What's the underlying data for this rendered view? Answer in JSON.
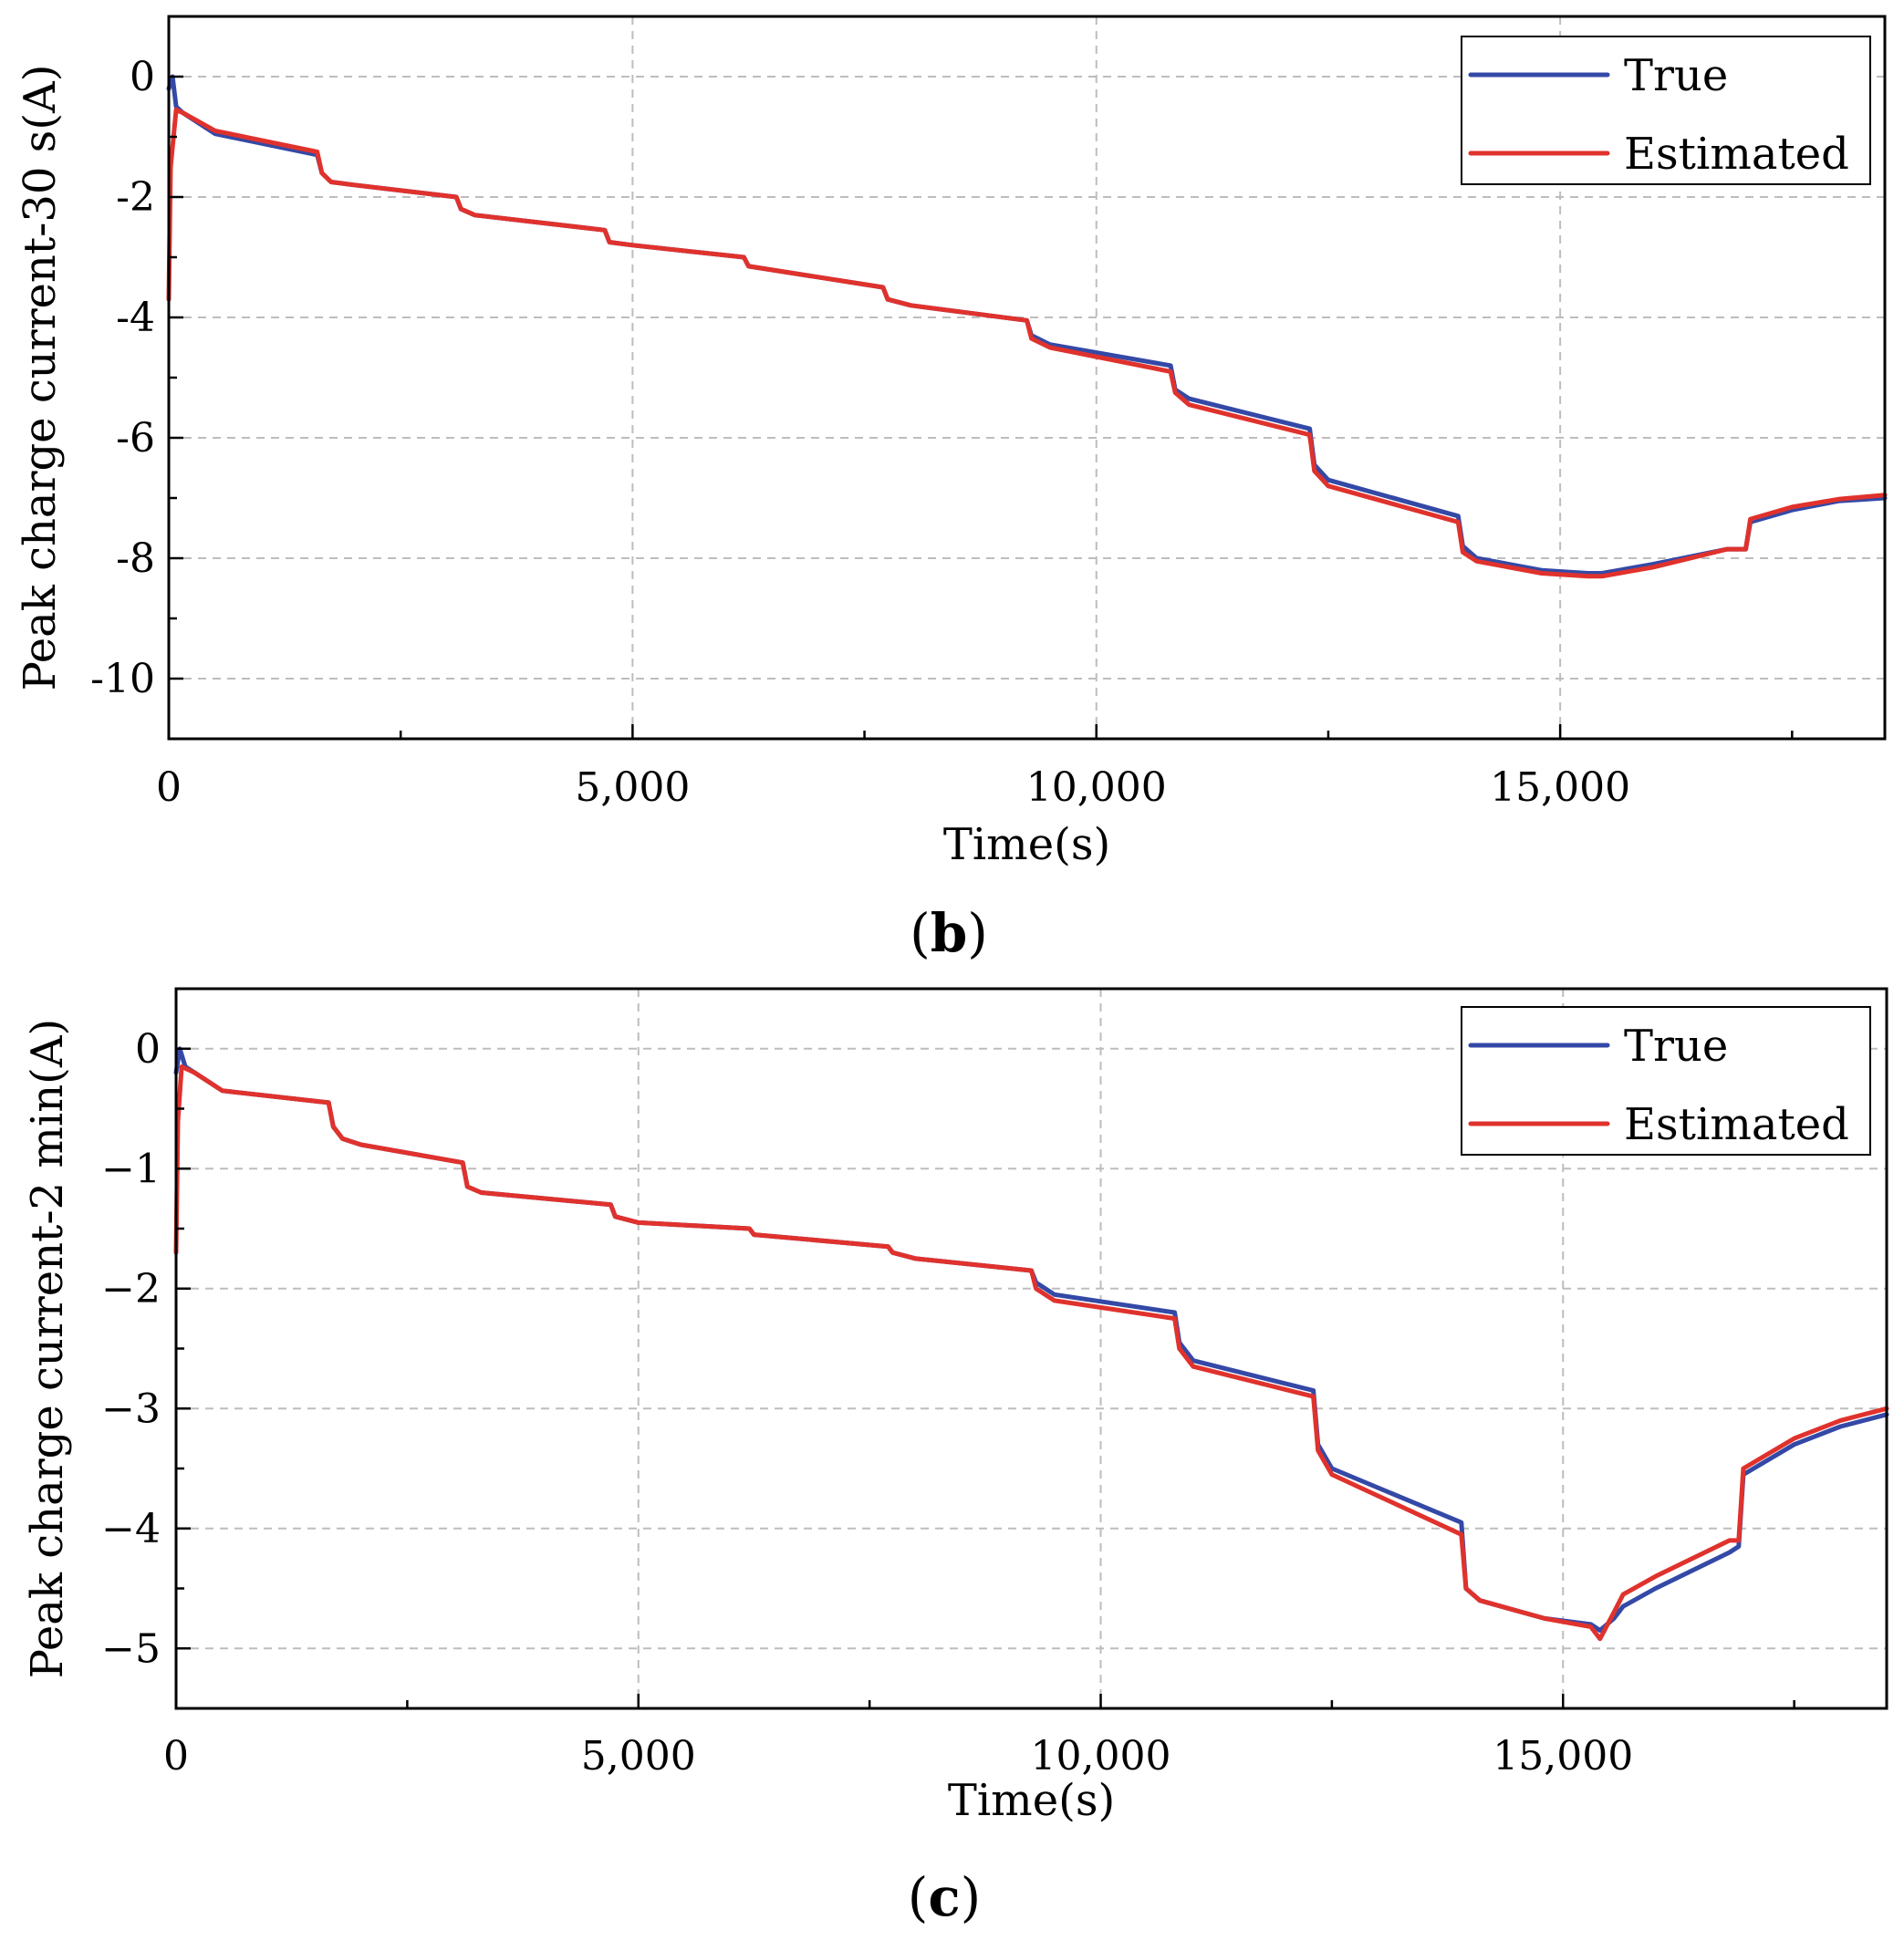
{
  "figure": {
    "label_b": "b",
    "label_c": "c"
  },
  "colors": {
    "true": "#3449a6",
    "estimated": "#e0322d",
    "grid": "#bdbdbd"
  },
  "chart_data": [
    {
      "type": "line",
      "panel": "b",
      "title": "",
      "xlabel": "Time(s)",
      "ylabel": "Peak charge current-30 s(A)",
      "xlim": [
        0,
        18500
      ],
      "ylim": [
        -11,
        1
      ],
      "xticks": [
        0,
        5000,
        10000,
        15000
      ],
      "xtick_labels": [
        "0",
        "5,000",
        "10,000",
        "15,000"
      ],
      "yticks": [
        0,
        -2,
        -4,
        -6,
        -8,
        -10
      ],
      "ytick_labels": [
        "0",
        "-2",
        "-4",
        "-6",
        "-8",
        "-10"
      ],
      "grid": true,
      "legend_position": "top-right",
      "series": [
        {
          "name": "True",
          "x": [
            0,
            40,
            80,
            150,
            500,
            1600,
            1650,
            1750,
            2000,
            3100,
            3150,
            3300,
            4700,
            4750,
            5000,
            6200,
            6250,
            7700,
            7750,
            8000,
            9250,
            9300,
            9500,
            10800,
            10850,
            11000,
            12300,
            12350,
            12500,
            13900,
            13950,
            14100,
            14800,
            15300,
            15450,
            16000,
            16800,
            17000,
            17050,
            17500,
            18000,
            18500
          ],
          "y": [
            -0.2,
            0.0,
            -0.5,
            -0.6,
            -0.95,
            -1.3,
            -1.6,
            -1.75,
            -1.8,
            -2.0,
            -2.2,
            -2.3,
            -2.55,
            -2.75,
            -2.8,
            -3.0,
            -3.15,
            -3.5,
            -3.7,
            -3.8,
            -4.05,
            -4.3,
            -4.45,
            -4.8,
            -5.2,
            -5.35,
            -5.85,
            -6.45,
            -6.7,
            -7.3,
            -7.8,
            -8.0,
            -8.2,
            -8.25,
            -8.25,
            -8.1,
            -7.85,
            -7.85,
            -7.4,
            -7.2,
            -7.05,
            -7.0
          ]
        },
        {
          "name": "Estimated",
          "x": [
            0,
            20,
            80,
            150,
            500,
            1600,
            1650,
            1750,
            2000,
            3100,
            3150,
            3300,
            4700,
            4750,
            5000,
            6200,
            6250,
            7700,
            7750,
            8000,
            9250,
            9300,
            9500,
            10800,
            10850,
            11000,
            12300,
            12350,
            12500,
            13900,
            13950,
            14100,
            14800,
            15300,
            15450,
            16000,
            16800,
            17000,
            17050,
            17500,
            18000,
            18500
          ],
          "y": [
            -3.7,
            -1.5,
            -0.55,
            -0.6,
            -0.9,
            -1.25,
            -1.6,
            -1.75,
            -1.8,
            -2.0,
            -2.2,
            -2.3,
            -2.55,
            -2.75,
            -2.8,
            -3.0,
            -3.15,
            -3.5,
            -3.7,
            -3.8,
            -4.05,
            -4.35,
            -4.5,
            -4.9,
            -5.25,
            -5.45,
            -5.95,
            -6.55,
            -6.8,
            -7.4,
            -7.9,
            -8.05,
            -8.25,
            -8.3,
            -8.3,
            -8.15,
            -7.85,
            -7.85,
            -7.35,
            -7.15,
            -7.02,
            -6.95
          ]
        }
      ]
    },
    {
      "type": "line",
      "panel": "c",
      "title": "",
      "xlabel": "Time(s)",
      "ylabel": "Peak charge current-2 min(A)",
      "xlim": [
        0,
        18500
      ],
      "ylim": [
        -5.5,
        0.5
      ],
      "xticks": [
        0,
        5000,
        10000,
        15000
      ],
      "xtick_labels": [
        "0",
        "5,000",
        "10,000",
        "15,000"
      ],
      "yticks": [
        0,
        -1,
        -2,
        -3,
        -4,
        -5
      ],
      "ytick_labels": [
        "0",
        "−1",
        "−2",
        "−3",
        "−4",
        "−5"
      ],
      "grid": true,
      "legend_position": "top-right",
      "series": [
        {
          "name": "True",
          "x": [
            0,
            40,
            100,
            200,
            500,
            1650,
            1700,
            1800,
            2000,
            3100,
            3150,
            3300,
            4700,
            4750,
            5000,
            6200,
            6250,
            7700,
            7750,
            8000,
            9250,
            9300,
            9500,
            10800,
            10850,
            11000,
            12300,
            12350,
            12500,
            13900,
            13950,
            14100,
            14800,
            15300,
            15400,
            15550,
            15650,
            16000,
            16800,
            16900,
            16950,
            17500,
            18000,
            18500
          ],
          "y": [
            -0.2,
            0.0,
            -0.15,
            -0.2,
            -0.35,
            -0.45,
            -0.65,
            -0.75,
            -0.8,
            -0.95,
            -1.15,
            -1.2,
            -1.3,
            -1.4,
            -1.45,
            -1.5,
            -1.55,
            -1.65,
            -1.7,
            -1.75,
            -1.85,
            -1.95,
            -2.05,
            -2.2,
            -2.45,
            -2.6,
            -2.85,
            -3.3,
            -3.5,
            -3.95,
            -4.5,
            -4.6,
            -4.75,
            -4.8,
            -4.85,
            -4.75,
            -4.65,
            -4.5,
            -4.2,
            -4.15,
            -3.55,
            -3.3,
            -3.15,
            -3.05
          ]
        },
        {
          "name": "Estimated",
          "x": [
            0,
            20,
            60,
            200,
            500,
            1650,
            1700,
            1800,
            2000,
            3100,
            3150,
            3300,
            4700,
            4750,
            5000,
            6200,
            6250,
            7700,
            7750,
            8000,
            9250,
            9300,
            9500,
            10800,
            10850,
            11000,
            12300,
            12350,
            12500,
            13900,
            13950,
            14100,
            14800,
            15300,
            15400,
            15550,
            15650,
            16000,
            16800,
            16900,
            16950,
            17500,
            18000,
            18500
          ],
          "y": [
            -1.7,
            -0.6,
            -0.15,
            -0.2,
            -0.35,
            -0.45,
            -0.65,
            -0.75,
            -0.8,
            -0.95,
            -1.15,
            -1.2,
            -1.3,
            -1.4,
            -1.45,
            -1.5,
            -1.55,
            -1.65,
            -1.7,
            -1.75,
            -1.85,
            -2.0,
            -2.1,
            -2.25,
            -2.5,
            -2.65,
            -2.9,
            -3.35,
            -3.55,
            -4.05,
            -4.5,
            -4.6,
            -4.75,
            -4.82,
            -4.92,
            -4.7,
            -4.55,
            -4.4,
            -4.1,
            -4.1,
            -3.5,
            -3.25,
            -3.1,
            -3.0
          ]
        }
      ]
    }
  ]
}
